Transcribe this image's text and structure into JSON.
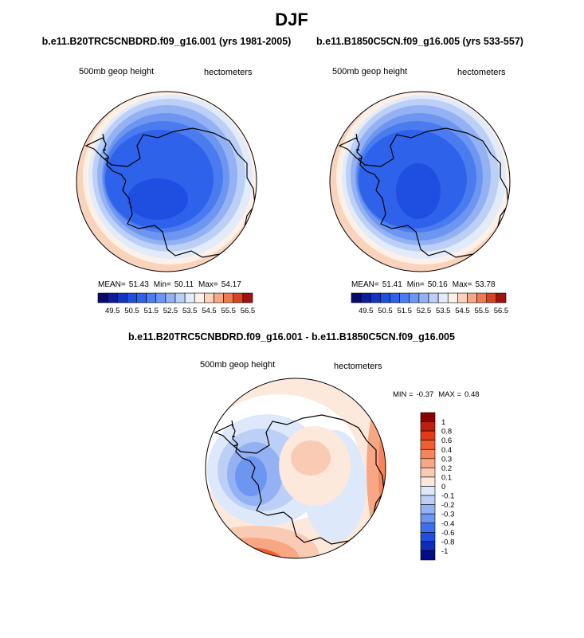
{
  "title": "DJF",
  "panels": [
    {
      "case": "b.e11.B20TRC5CNBDRD.f09_g16.001 (yrs 1981-2005)",
      "variable": "500mb geop height",
      "units": "hectometers",
      "stats": [
        {
          "label": "MEAN=",
          "value": 51.43
        },
        {
          "label": "Min=",
          "value": 50.11
        },
        {
          "label": "Max=",
          "value": 54.17
        }
      ]
    },
    {
      "case": "b.e11.B1850C5CN.f09_g16.005 (yrs 533-557)",
      "variable": "500mb geop height",
      "units": "hectometers",
      "stats": [
        {
          "label": "MEAN=",
          "value": 51.41
        },
        {
          "label": "Min=",
          "value": 50.16
        },
        {
          "label": "Max=",
          "value": 53.78
        }
      ]
    }
  ],
  "colorbar": {
    "levels": [
      49.5,
      50.5,
      51.5,
      52.5,
      53.5,
      54.5,
      55.5,
      56.5
    ],
    "colors": [
      "#0a0a6e",
      "#0c1d9c",
      "#1035c4",
      "#1f4fe0",
      "#2f62ea",
      "#4a7cef",
      "#6d96f1",
      "#93b1f3",
      "#bccff6",
      "#e2ebfa",
      "#fdf0e6",
      "#fad3bd",
      "#f5a883",
      "#ee7a52",
      "#d94322",
      "#a31010"
    ]
  },
  "difference": {
    "case": "b.e11.B20TRC5CNBDRD.f09_g16.001 - b.e11.B1850C5CN.f09_g16.005",
    "variable": "500mb geop height",
    "units": "hectometers",
    "stats": [
      {
        "label": "MIN =",
        "value": -0.37
      },
      {
        "label": "MAX =",
        "value": 0.48
      }
    ],
    "colorbar": {
      "levels": [
        1,
        0.8,
        0.6,
        0.4,
        0.3,
        0.2,
        0.1,
        0,
        -0.1,
        -0.2,
        -0.3,
        -0.4,
        -0.6,
        -0.8,
        -1
      ],
      "colors": [
        "#8b0000",
        "#bf1e10",
        "#e33a18",
        "#f0602f",
        "#f5845a",
        "#f8a784",
        "#facbb4",
        "#fde8dc",
        "#dde8fb",
        "#bccff6",
        "#93b1f3",
        "#6d96f1",
        "#3f6fee",
        "#1f4fe0",
        "#0f2cb8",
        "#050a86"
      ]
    }
  }
}
